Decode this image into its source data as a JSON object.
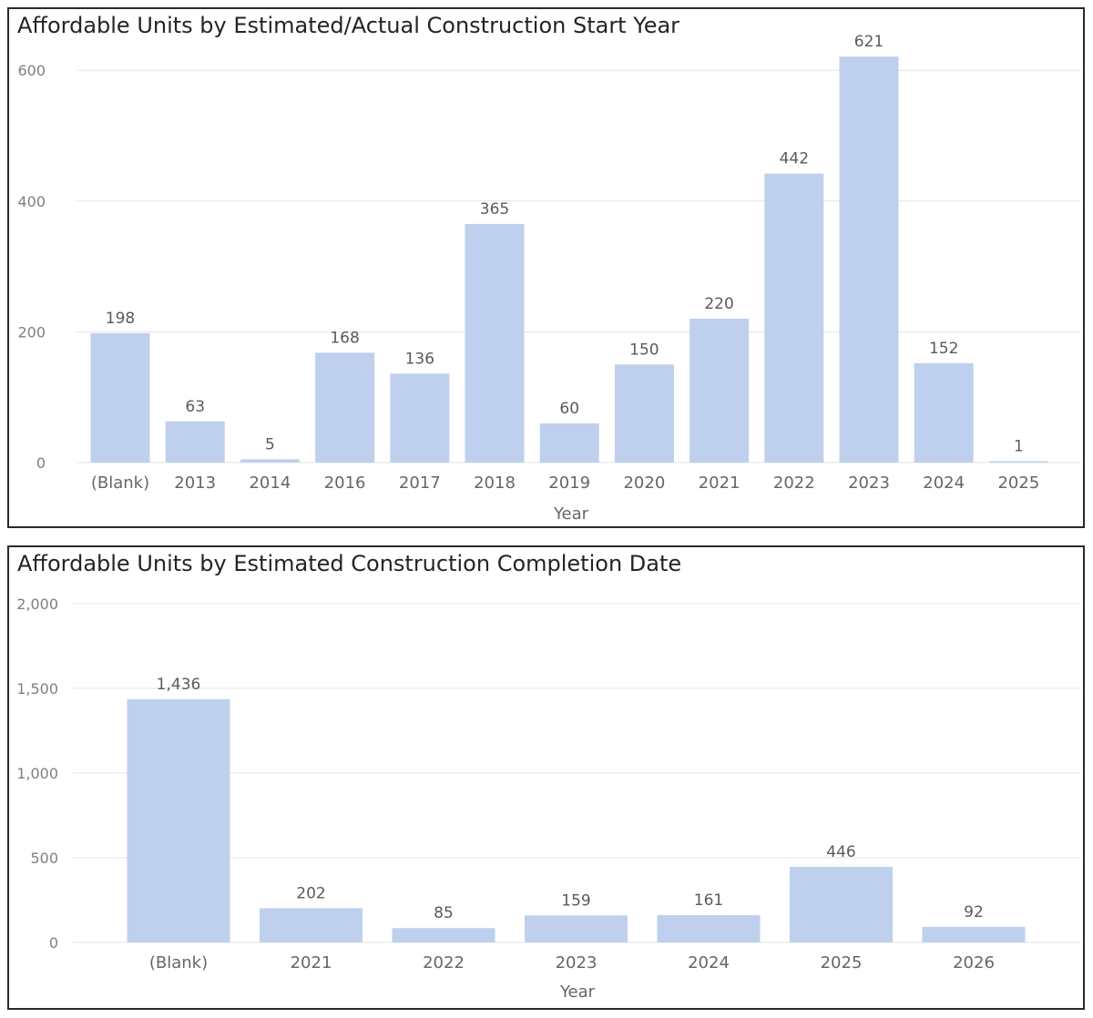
{
  "chart_data": [
    {
      "type": "bar",
      "title": "Affordable Units by Estimated/Actual Construction Start Year",
      "xlabel": "Year",
      "ylabel": "",
      "ylim": [
        0,
        650
      ],
      "yticks": [
        0,
        200,
        400,
        600
      ],
      "ytick_labels": [
        "0",
        "200",
        "400",
        "600"
      ],
      "grid": true,
      "categories": [
        "(Blank)",
        "2013",
        "2014",
        "2016",
        "2017",
        "2018",
        "2019",
        "2020",
        "2021",
        "2022",
        "2023",
        "2024",
        "2025"
      ],
      "values": [
        198,
        63,
        5,
        168,
        136,
        365,
        60,
        150,
        220,
        442,
        621,
        152,
        1
      ],
      "value_labels": [
        "198",
        "63",
        "5",
        "168",
        "136",
        "365",
        "60",
        "150",
        "220",
        "442",
        "621",
        "152",
        "1"
      ],
      "bar_color": "#bed0ee"
    },
    {
      "type": "bar",
      "title": "Affordable Units by Estimated Construction Completion Date",
      "xlabel": "Year",
      "ylabel": "",
      "ylim": [
        0,
        2000
      ],
      "yticks": [
        0,
        500,
        1000,
        1500,
        2000
      ],
      "ytick_labels": [
        "0",
        "500",
        "1,000",
        "1,500",
        "2,000"
      ],
      "grid": true,
      "categories": [
        "(Blank)",
        "2021",
        "2022",
        "2023",
        "2024",
        "2025",
        "2026"
      ],
      "values": [
        1436,
        202,
        85,
        159,
        161,
        446,
        92
      ],
      "value_labels": [
        "1,436",
        "202",
        "85",
        "159",
        "161",
        "446",
        "92"
      ],
      "bar_color": "#bed0ee"
    }
  ]
}
